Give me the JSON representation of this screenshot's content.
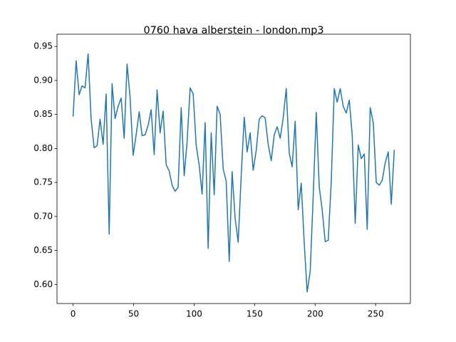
{
  "chart_data": {
    "type": "line",
    "title": "0760 hava alberstein - london.mp3",
    "x": [
      0,
      2.5,
      5.0,
      7.4,
      9.9,
      12.4,
      14.9,
      17.4,
      19.8,
      22.3,
      24.8,
      27.3,
      29.8,
      32.2,
      34.7,
      37.2,
      39.7,
      42.2,
      44.6,
      47.1,
      49.6,
      52.1,
      54.6,
      57.0,
      59.5,
      62.0,
      64.5,
      67.0,
      69.4,
      71.9,
      74.4,
      76.9,
      79.4,
      81.8,
      84.3,
      86.8,
      89.3,
      91.8,
      94.2,
      96.7,
      99.2,
      101.7,
      104.2,
      106.6,
      109.1,
      111.6,
      114.1,
      116.6,
      119.0,
      121.5,
      124.0,
      126.5,
      129.0,
      131.4,
      133.9,
      136.4,
      138.9,
      141.4,
      143.8,
      146.3,
      148.8,
      151.3,
      153.8,
      156.2,
      158.7,
      161.2,
      163.7,
      166.2,
      168.6,
      171.1,
      173.6,
      176.1,
      178.6,
      181.0,
      183.5,
      186.0,
      188.5,
      191.0,
      193.4,
      195.9,
      198.4,
      200.9,
      203.4,
      205.8,
      208.3,
      210.8,
      213.3,
      215.8,
      218.2,
      220.7,
      223.2,
      225.7,
      228.2,
      230.6,
      233.1,
      235.6,
      238.1,
      240.6,
      243.0,
      245.5,
      248.0,
      250.5,
      253.0,
      255.4,
      257.9,
      260.4,
      262.9,
      265.4
    ],
    "series": [
      {
        "name": "series",
        "color": "#1f77b4",
        "values": [
          0.847,
          0.929,
          0.879,
          0.892,
          0.889,
          0.939,
          0.843,
          0.801,
          0.804,
          0.843,
          0.806,
          0.88,
          0.674,
          0.895,
          0.844,
          0.862,
          0.874,
          0.815,
          0.924,
          0.875,
          0.79,
          0.82,
          0.854,
          0.819,
          0.82,
          0.834,
          0.857,
          0.791,
          0.886,
          0.823,
          0.855,
          0.776,
          0.767,
          0.746,
          0.737,
          0.743,
          0.86,
          0.76,
          0.81,
          0.889,
          0.88,
          0.805,
          0.775,
          0.733,
          0.838,
          0.653,
          0.823,
          0.732,
          0.862,
          0.85,
          0.77,
          0.752,
          0.634,
          0.766,
          0.697,
          0.662,
          0.76,
          0.846,
          0.795,
          0.823,
          0.768,
          0.797,
          0.843,
          0.848,
          0.845,
          0.806,
          0.782,
          0.82,
          0.832,
          0.815,
          0.845,
          0.888,
          0.793,
          0.773,
          0.84,
          0.71,
          0.749,
          0.66,
          0.589,
          0.619,
          0.73,
          0.853,
          0.743,
          0.71,
          0.663,
          0.665,
          0.751,
          0.888,
          0.868,
          0.888,
          0.862,
          0.852,
          0.871,
          0.82,
          0.69,
          0.805,
          0.785,
          0.792,
          0.681,
          0.86,
          0.838,
          0.75,
          0.746,
          0.753,
          0.779,
          0.795,
          0.718,
          0.798
        ]
      }
    ],
    "xlim": [
      -13.3,
      278.7
    ],
    "ylim": [
      0.572,
      0.968
    ],
    "xticks": [
      0,
      50,
      100,
      150,
      200,
      250
    ],
    "yticks": [
      {
        "value": 0.6,
        "label": "0.60"
      },
      {
        "value": 0.65,
        "label": "0.65"
      },
      {
        "value": 0.7,
        "label": "0.70"
      },
      {
        "value": 0.75,
        "label": "0.75"
      },
      {
        "value": 0.8,
        "label": "0.80"
      },
      {
        "value": 0.85,
        "label": "0.85"
      },
      {
        "value": 0.9,
        "label": "0.90"
      },
      {
        "value": 0.95,
        "label": "0.95"
      }
    ]
  }
}
